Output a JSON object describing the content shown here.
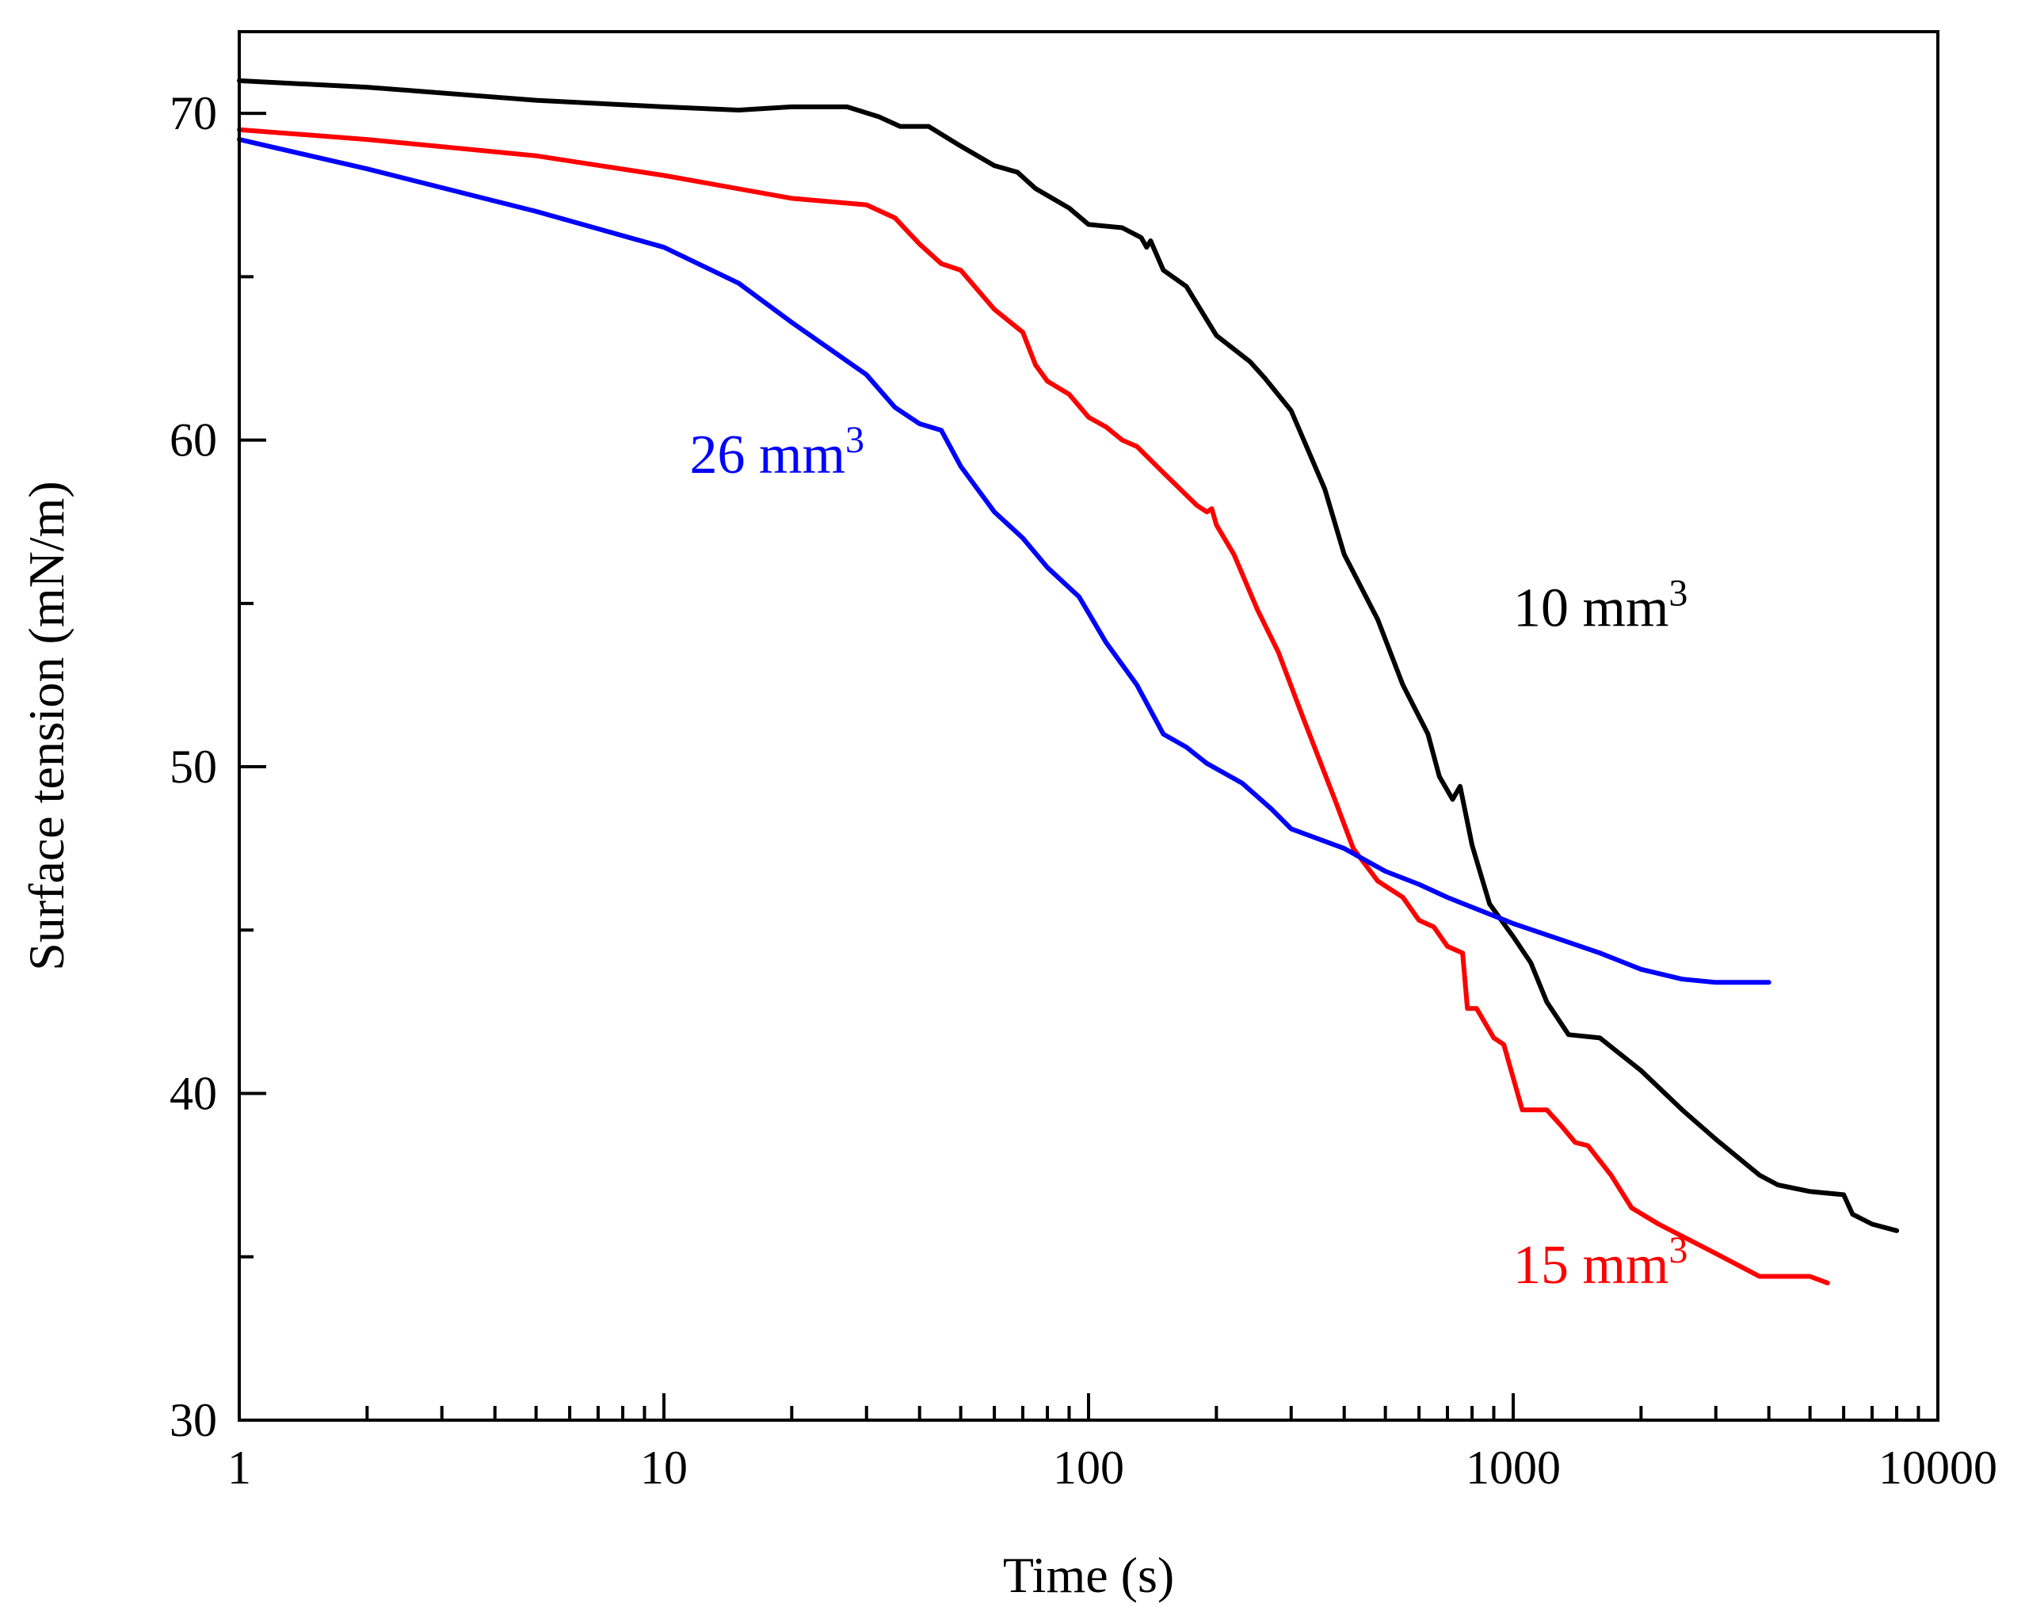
{
  "chart_data": {
    "type": "line",
    "xscale": "log",
    "xlabel": "Time (s)",
    "ylabel": "Surface tension (mN/m)",
    "xlim": [
      1,
      10000
    ],
    "ylim": [
      30,
      72.5
    ],
    "x_ticks": [
      1,
      10,
      100,
      1000,
      10000
    ],
    "x_tick_labels": [
      "1",
      "10",
      "100",
      "1000",
      "10000"
    ],
    "y_ticks": [
      30,
      40,
      50,
      60,
      70
    ],
    "y_tick_labels": [
      "30",
      "40",
      "50",
      "60",
      "70"
    ],
    "y_minor_ticks": [
      35,
      45,
      55,
      65
    ],
    "grid": false,
    "series": [
      {
        "name": "10 mm³",
        "label_base": "10 mm",
        "label_sup": "3",
        "color": "#000000",
        "label_at": [
          1000,
          54.3
        ],
        "points": [
          [
            1,
            71.0
          ],
          [
            2,
            70.8
          ],
          [
            5,
            70.4
          ],
          [
            10,
            70.2
          ],
          [
            15,
            70.1
          ],
          [
            20,
            70.2
          ],
          [
            27,
            70.2
          ],
          [
            32,
            69.9
          ],
          [
            36,
            69.6
          ],
          [
            42,
            69.6
          ],
          [
            50,
            69.0
          ],
          [
            60,
            68.4
          ],
          [
            68,
            68.2
          ],
          [
            75,
            67.7
          ],
          [
            90,
            67.1
          ],
          [
            100,
            66.6
          ],
          [
            120,
            66.5
          ],
          [
            133,
            66.2
          ],
          [
            137,
            65.9
          ],
          [
            140,
            66.1
          ],
          [
            150,
            65.2
          ],
          [
            170,
            64.7
          ],
          [
            200,
            63.2
          ],
          [
            240,
            62.4
          ],
          [
            260,
            61.9
          ],
          [
            300,
            60.9
          ],
          [
            360,
            58.5
          ],
          [
            400,
            56.5
          ],
          [
            480,
            54.5
          ],
          [
            550,
            52.5
          ],
          [
            630,
            51.0
          ],
          [
            670,
            49.7
          ],
          [
            720,
            49.0
          ],
          [
            750,
            49.4
          ],
          [
            800,
            47.6
          ],
          [
            880,
            45.8
          ],
          [
            1000,
            44.8
          ],
          [
            1100,
            44.0
          ],
          [
            1200,
            42.8
          ],
          [
            1350,
            41.8
          ],
          [
            1600,
            41.7
          ],
          [
            2000,
            40.7
          ],
          [
            2500,
            39.5
          ],
          [
            3000,
            38.6
          ],
          [
            3800,
            37.5
          ],
          [
            4200,
            37.2
          ],
          [
            5000,
            37.0
          ],
          [
            6000,
            36.9
          ],
          [
            6300,
            36.3
          ],
          [
            7000,
            36.0
          ],
          [
            8000,
            35.8
          ]
        ]
      },
      {
        "name": "15 mm³",
        "label_base": "15 mm",
        "label_sup": "3",
        "color": "#ff0000",
        "label_at": [
          1000,
          34.2
        ],
        "points": [
          [
            1,
            69.5
          ],
          [
            2,
            69.2
          ],
          [
            5,
            68.7
          ],
          [
            10,
            68.1
          ],
          [
            20,
            67.4
          ],
          [
            30,
            67.2
          ],
          [
            35,
            66.8
          ],
          [
            40,
            66.0
          ],
          [
            45,
            65.4
          ],
          [
            50,
            65.2
          ],
          [
            60,
            64.0
          ],
          [
            70,
            63.3
          ],
          [
            75,
            62.3
          ],
          [
            80,
            61.8
          ],
          [
            90,
            61.4
          ],
          [
            100,
            60.7
          ],
          [
            110,
            60.4
          ],
          [
            120,
            60.0
          ],
          [
            130,
            59.8
          ],
          [
            150,
            59.0
          ],
          [
            180,
            58.0
          ],
          [
            190,
            57.8
          ],
          [
            195,
            57.9
          ],
          [
            200,
            57.4
          ],
          [
            220,
            56.5
          ],
          [
            250,
            54.8
          ],
          [
            280,
            53.5
          ],
          [
            320,
            51.5
          ],
          [
            380,
            49.0
          ],
          [
            420,
            47.5
          ],
          [
            480,
            46.5
          ],
          [
            550,
            46.0
          ],
          [
            600,
            45.3
          ],
          [
            650,
            45.1
          ],
          [
            700,
            44.5
          ],
          [
            760,
            44.3
          ],
          [
            780,
            42.6
          ],
          [
            820,
            42.6
          ],
          [
            900,
            41.7
          ],
          [
            950,
            41.5
          ],
          [
            1050,
            39.5
          ],
          [
            1200,
            39.5
          ],
          [
            1300,
            39.0
          ],
          [
            1400,
            38.5
          ],
          [
            1500,
            38.4
          ],
          [
            1700,
            37.5
          ],
          [
            1900,
            36.5
          ],
          [
            2200,
            36.0
          ],
          [
            3000,
            35.1
          ],
          [
            3800,
            34.4
          ],
          [
            4500,
            34.4
          ],
          [
            5000,
            34.4
          ],
          [
            5500,
            34.2
          ]
        ]
      },
      {
        "name": "26 mm³",
        "label_base": "26 mm",
        "label_sup": "3",
        "color": "#0000ff",
        "label_at": [
          11.5,
          59.0
        ],
        "points": [
          [
            1,
            69.2
          ],
          [
            2,
            68.3
          ],
          [
            5,
            67.0
          ],
          [
            10,
            65.9
          ],
          [
            15,
            64.8
          ],
          [
            20,
            63.6
          ],
          [
            30,
            62.0
          ],
          [
            35,
            61.0
          ],
          [
            40,
            60.5
          ],
          [
            45,
            60.3
          ],
          [
            50,
            59.2
          ],
          [
            60,
            57.8
          ],
          [
            70,
            57.0
          ],
          [
            80,
            56.1
          ],
          [
            95,
            55.2
          ],
          [
            110,
            53.8
          ],
          [
            130,
            52.5
          ],
          [
            150,
            51.0
          ],
          [
            170,
            50.6
          ],
          [
            190,
            50.1
          ],
          [
            230,
            49.5
          ],
          [
            270,
            48.7
          ],
          [
            300,
            48.1
          ],
          [
            400,
            47.5
          ],
          [
            500,
            46.8
          ],
          [
            600,
            46.4
          ],
          [
            700,
            46.0
          ],
          [
            800,
            45.7
          ],
          [
            1000,
            45.2
          ],
          [
            1300,
            44.7
          ],
          [
            1600,
            44.3
          ],
          [
            2000,
            43.8
          ],
          [
            2500,
            43.5
          ],
          [
            3000,
            43.4
          ],
          [
            4000,
            43.4
          ]
        ]
      }
    ]
  }
}
